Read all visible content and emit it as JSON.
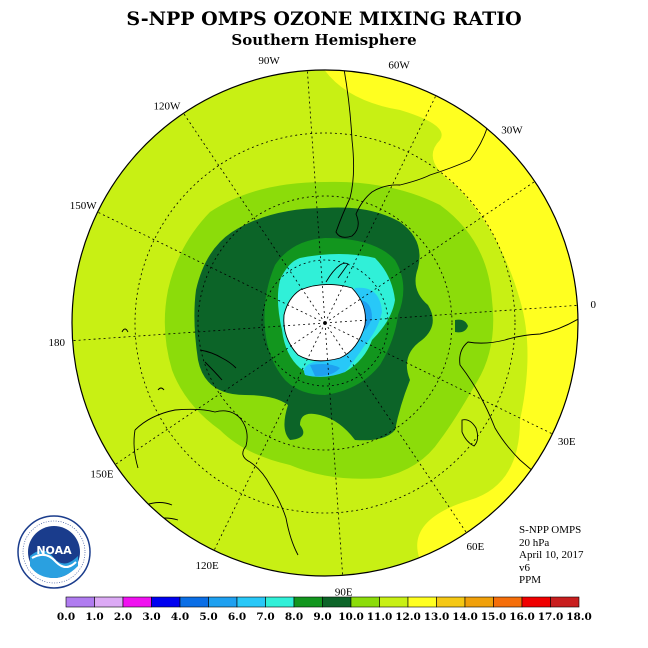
{
  "title": "S-NPP OMPS OZONE MIXING RATIO",
  "subtitle": "Southern Hemisphere",
  "longitude_labels": [
    "90W",
    "60W",
    "30W",
    "0",
    "30E",
    "60E",
    "90E",
    "120E",
    "150E",
    "180",
    "150W",
    "120W"
  ],
  "info": {
    "instrument": "S-NPP OMPS",
    "pressure": "20 hPa",
    "date": "April 10, 2017",
    "version": "v6",
    "units": "PPM"
  },
  "logo_text": "NOAA",
  "colorbar": {
    "labels": [
      "0.0",
      "1.0",
      "2.0",
      "3.0",
      "4.0",
      "5.0",
      "6.0",
      "7.0",
      "8.0",
      "9.0",
      "10.0",
      "11.0",
      "12.0",
      "13.0",
      "14.0",
      "15.0",
      "16.0",
      "17.0",
      "18.0"
    ],
    "colors": [
      "#b07cf0",
      "#dcaaf5",
      "#f010f0",
      "#0000f0",
      "#0a6ee6",
      "#1ea0f0",
      "#28c8f8",
      "#30f0d8",
      "#12961e",
      "#0c6428",
      "#8cdc0a",
      "#c8f014",
      "#ffff20",
      "#f5c814",
      "#f0a00a",
      "#f56e0a",
      "#f00000",
      "#c81e1e",
      "#8c5a3c"
    ]
  },
  "chart_data": {
    "type": "polar-map",
    "projection": "south-polar-stereographic",
    "variable": "Ozone mixing ratio",
    "units": "PPM",
    "pressure_level": "20 hPa",
    "date": "April 10, 2017",
    "range": [
      0,
      18
    ],
    "contour_interval": 1.0,
    "regions": [
      {
        "area": "south pole center",
        "value_ppm": "below 4.0 (no data)"
      },
      {
        "area": "inner polar vortex",
        "value_ppm": "5.0-8.0"
      },
      {
        "area": "vortex collar",
        "value_ppm": "9.0-10.0"
      },
      {
        "area": "surrounding ring",
        "value_ppm": "10.0-11.0"
      },
      {
        "area": "mid latitudes",
        "value_ppm": "11.0-12.0"
      },
      {
        "area": "low latitudes (Atlantic / Africa side)",
        "value_ppm": "12.0-13.0"
      }
    ]
  }
}
